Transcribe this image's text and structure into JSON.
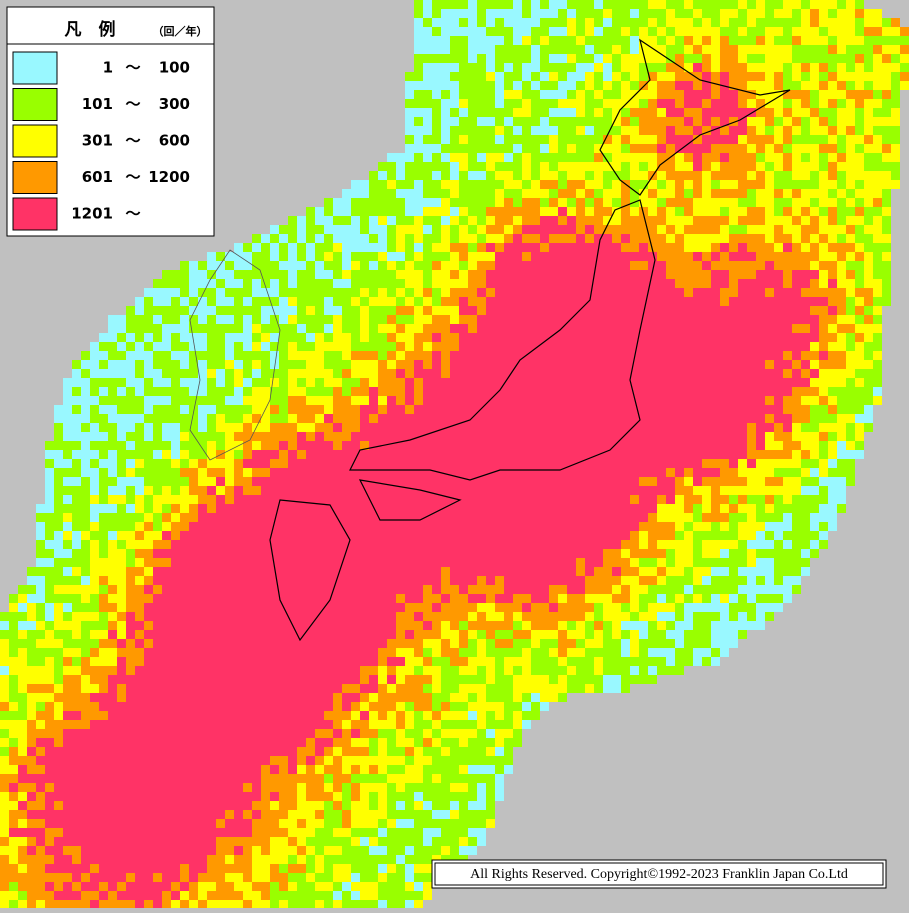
{
  "legend": {
    "title": "凡　例",
    "unit": "（回／年）",
    "separator": "～",
    "items": [
      {
        "color": "#99f8ff",
        "min": "1",
        "max": "100"
      },
      {
        "color": "#99ff00",
        "min": "101",
        "max": "300"
      },
      {
        "color": "#ffff00",
        "min": "301",
        "max": "600"
      },
      {
        "color": "#ff9900",
        "min": "601",
        "max": "1200"
      },
      {
        "color": "#ff3366",
        "min": "1201"
      }
    ]
  },
  "copyright": "All Rights Reserved. Copyright©1992-2023 Franklin Japan Co.Ltd"
}
